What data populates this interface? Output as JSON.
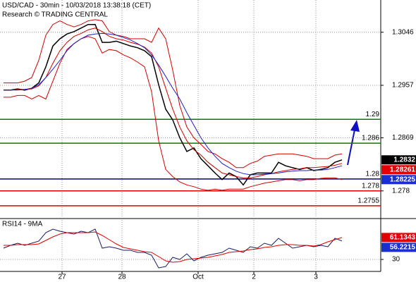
{
  "chart_data": [
    {
      "type": "line",
      "title": "USD/CAD - 30min - 10/03/2018 13:38:18 (CET)",
      "subtitle": "Research © TRADING CENTRAL",
      "x": [
        0,
        1,
        2,
        3,
        4,
        5,
        6,
        7,
        8,
        9,
        10,
        11,
        12,
        13,
        14,
        15,
        16,
        17,
        18,
        19,
        20,
        21,
        22,
        23,
        24,
        25,
        26,
        27,
        28,
        29,
        30,
        31,
        32,
        33,
        34,
        35,
        36,
        37,
        38,
        39,
        40,
        41,
        42,
        43,
        44,
        45,
        46,
        47,
        48
      ],
      "xlim": [
        -0.5,
        53.5
      ],
      "ylim": [
        1.2736,
        1.31
      ],
      "yticks": [
        1.3046,
        1.2957,
        1.2869,
        1.278
      ],
      "grid": true,
      "series": [
        {
          "color": "#000000",
          "values": [
            1.2949,
            1.2949,
            1.2951,
            1.2949,
            1.2952,
            1.2961,
            1.2988,
            1.3023,
            1.3035,
            1.3043,
            1.3047,
            1.3053,
            1.3059,
            1.3059,
            1.3029,
            1.3029,
            1.3031,
            1.3027,
            1.3023,
            1.302,
            1.3015,
            1.3005,
            1.2958,
            1.2917,
            1.2899,
            1.2869,
            1.2846,
            1.2852,
            1.2834,
            1.2822,
            1.281,
            1.2799,
            1.281,
            1.2804,
            1.279,
            1.2807,
            1.281,
            1.281,
            1.281,
            1.2828,
            1.2822,
            1.2819,
            1.2816,
            1.2819,
            1.2814,
            1.2816,
            1.2819,
            1.2828,
            1.2832
          ]
        },
        {
          "color": "#d00000",
          "values": [
            1.2961,
            1.2961,
            1.2961,
            1.2964,
            1.297,
            1.2999,
            1.3041,
            1.3059,
            1.3065,
            1.3059,
            1.3055,
            1.3059,
            1.3065,
            1.3067,
            1.3065,
            1.3047,
            1.3041,
            1.3039,
            1.3035,
            1.3035,
            1.3035,
            1.3029,
            1.3053,
            1.3035,
            1.2982,
            1.2923,
            1.2887,
            1.2869,
            1.2858,
            1.2846,
            1.2842,
            1.2834,
            1.2828,
            1.2819,
            1.2819,
            1.2826,
            1.283,
            1.2838,
            1.284,
            1.2842,
            1.2842,
            1.2842,
            1.284,
            1.2838,
            1.2834,
            1.2834,
            1.2834,
            1.284,
            1.2842
          ]
        },
        {
          "color": "#d00000",
          "values": [
            1.2949,
            1.2949,
            1.295,
            1.295,
            1.2951,
            1.2956,
            1.297,
            1.2994,
            1.3015,
            1.3029,
            1.3039,
            1.3044,
            1.305,
            1.3053,
            1.3047,
            1.3039,
            1.3035,
            1.3033,
            1.3029,
            1.3026,
            1.3021,
            1.3011,
            1.2988,
            1.2952,
            1.2917,
            1.2887,
            1.2864,
            1.2849,
            1.284,
            1.2828,
            1.2819,
            1.281,
            1.2807,
            1.2804,
            1.2802,
            1.2802,
            1.2804,
            1.2807,
            1.2809,
            1.2812,
            1.2814,
            1.2816,
            1.2817,
            1.2819,
            1.2819,
            1.282,
            1.2821,
            1.2823,
            1.2826
          ]
        },
        {
          "color": "#d00000",
          "values": [
            1.2937,
            1.2937,
            1.294,
            1.294,
            1.2934,
            1.294,
            1.2934,
            1.2964,
            1.2994,
            1.3017,
            1.3027,
            1.3035,
            1.3039,
            1.3035,
            1.3011,
            1.3017,
            1.3015,
            1.3008,
            1.3003,
            1.2996,
            1.2988,
            1.2946,
            1.2864,
            1.2816,
            1.2804,
            1.2795,
            1.279,
            1.2787,
            1.2783,
            1.2781,
            1.2783,
            1.2781,
            1.2783,
            1.2783,
            1.2783,
            1.2787,
            1.279,
            1.2793,
            1.2795,
            1.2797,
            1.2799,
            1.2799,
            1.2797,
            1.2799,
            1.2799,
            1.2801,
            1.2802,
            1.2802,
            1.2799
          ]
        },
        {
          "color": "#2020c0",
          "values": [
            1.2949,
            1.2949,
            1.2949,
            1.295,
            1.2952,
            1.2958,
            1.297,
            1.2984,
            1.2999,
            1.3015,
            1.3027,
            1.3035,
            1.3041,
            1.3043,
            1.3044,
            1.3043,
            1.3041,
            1.3037,
            1.3033,
            1.3027,
            1.302,
            1.3008,
            1.2991,
            1.2972,
            1.2952,
            1.2934,
            1.2911,
            1.289,
            1.2869,
            1.2852,
            1.2838,
            1.2826,
            1.2819,
            1.2813,
            1.2809,
            1.2807,
            1.2807,
            1.2808,
            1.2809,
            1.281,
            1.2812,
            1.2813,
            1.2814,
            1.2814,
            1.2815,
            1.2815,
            1.2816,
            1.2819,
            1.2822
          ]
        }
      ],
      "levels": [
        {
          "value": 1.29,
          "color": "#008000"
        },
        {
          "value": 1.286,
          "color": "#008000"
        },
        {
          "value": 1.28,
          "color": "#000090"
        },
        {
          "value": 1.278,
          "color": "#e00000"
        },
        {
          "value": 1.2755,
          "color": "#e00000"
        }
      ],
      "price_tags": [
        {
          "value": 1.2832,
          "label": "1.2832",
          "color": "#000000"
        },
        {
          "value": 1.28261,
          "label": "1.28261",
          "color": "#e00000"
        },
        {
          "value": 1.28225,
          "label": "1.28225",
          "color": "#1a2fd0"
        }
      ]
    },
    {
      "type": "line",
      "title": "RSI14 - 9MA",
      "x": [
        0,
        1,
        2,
        3,
        4,
        5,
        6,
        7,
        8,
        9,
        10,
        11,
        12,
        13,
        14,
        15,
        16,
        17,
        18,
        19,
        20,
        21,
        22,
        23,
        24,
        25,
        26,
        27,
        28,
        29,
        30,
        31,
        32,
        33,
        34,
        35,
        36,
        37,
        38,
        39,
        40,
        41,
        42,
        43,
        44,
        45,
        46,
        47,
        48
      ],
      "xlim": [
        -0.5,
        53.5
      ],
      "ylim": [
        13,
        86
      ],
      "yticks": [
        30
      ],
      "xticks": [
        {
          "value": 8.3,
          "label": "27"
        },
        {
          "value": 16.8,
          "label": "28"
        },
        {
          "value": 27.6,
          "label": "Oct"
        },
        {
          "value": 35.5,
          "label": "2"
        },
        {
          "value": 44.3,
          "label": "3"
        }
      ],
      "series": [
        {
          "color": "#1a1a60",
          "values": [
            46,
            50,
            53,
            50,
            53,
            56,
            68,
            73,
            70,
            68,
            66,
            70,
            68,
            73,
            46,
            48,
            46,
            43,
            43,
            40,
            40,
            36,
            18,
            20,
            33,
            30,
            38,
            28,
            33,
            36,
            38,
            40,
            46,
            43,
            40,
            48,
            46,
            53,
            50,
            60,
            53,
            46,
            48,
            50,
            48,
            50,
            48,
            60,
            56.2215
          ]
        },
        {
          "color": "#e00000",
          "values": [
            50,
            50,
            51,
            51,
            51,
            52,
            57,
            62,
            66,
            68,
            68,
            68,
            68,
            69,
            64,
            58,
            52,
            47,
            45,
            43,
            41,
            40,
            34,
            28,
            26,
            27,
            30,
            31,
            32,
            33,
            35,
            37,
            40,
            41,
            42,
            44,
            45,
            47,
            48,
            50,
            51,
            51,
            50,
            50,
            49,
            51,
            55,
            58,
            61.1343
          ]
        }
      ],
      "price_tags": [
        {
          "value": 61.1343,
          "label": "61.1343",
          "color": "#e00000"
        },
        {
          "value": 56.2215,
          "label": "56.2215",
          "color": "#1a2fd0"
        }
      ]
    }
  ]
}
